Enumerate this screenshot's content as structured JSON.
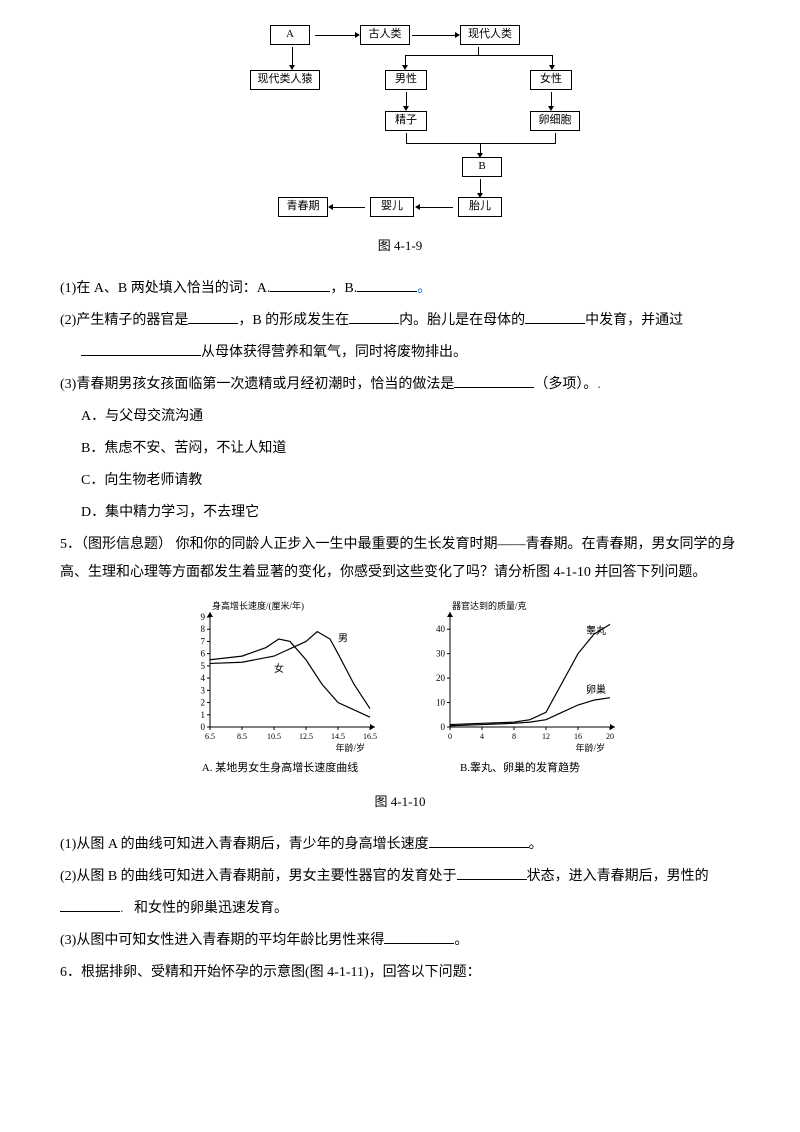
{
  "flowchart": {
    "nodes": {
      "A": "A",
      "ape": "现代类人猿",
      "ancient": "古人类",
      "modern": "现代人类",
      "male": "男性",
      "female": "女性",
      "sperm": "精子",
      "egg": "卵细胞",
      "B": "B",
      "fetus": "胎儿",
      "baby": "婴儿",
      "puberty": "青春期"
    },
    "caption": "图 4-1-9"
  },
  "q1": {
    "text_pre": "(1)在 A、B 两处填入恰当的词：A.",
    "sep": "，B.",
    "end": "。"
  },
  "q2": {
    "p1": "(2)产生精子的器官是",
    "p2": "，B 的形成发生在",
    "p3": "内。胎儿是在母体的",
    "p4": "中发育，并通过",
    "p5": "从母体获得营养和氧气，同时将废物排出。"
  },
  "q3": {
    "stem": "(3)青春期男孩女孩面临第一次遗精或月经初潮时，恰当的做法是",
    "tail": "（多项）。",
    "opts": {
      "A": "A．与父母交流沟通",
      "B": "B．焦虑不安、苦闷，不让人知道",
      "C": "C．向生物老师请教",
      "D": "D．集中精力学习，不去理它"
    }
  },
  "q5": {
    "num": "5．（图形信息题）",
    "body": "  你和你的同龄人正步入一生中最重要的生长发育时期——青春期。在青春期，男女同学的身高、生理和心理等方面都发生着显著的变化，你感受到这些变化了吗？请分析图 4-1-10 并回答下列问题。"
  },
  "chartA": {
    "ylabel": "身高增长速度/(厘米/年)",
    "ylim": [
      0,
      9
    ],
    "yticks": [
      0,
      1,
      2,
      3,
      4,
      5,
      6,
      7,
      8,
      9
    ],
    "xlabel": "年龄/岁",
    "xticks": [
      "6.5",
      "8.5",
      "10.5",
      "12.5",
      "14.5",
      "16.5"
    ],
    "series_male": {
      "label": "男",
      "color": "#000000",
      "width": 1.2,
      "points": [
        [
          6.5,
          5.2
        ],
        [
          8.5,
          5.3
        ],
        [
          10.5,
          5.8
        ],
        [
          12.5,
          7.0
        ],
        [
          13.2,
          7.8
        ],
        [
          14.0,
          7.2
        ],
        [
          14.5,
          6.0
        ],
        [
          15.5,
          3.5
        ],
        [
          16.5,
          1.5
        ]
      ]
    },
    "series_female": {
      "label": "女",
      "color": "#000000",
      "width": 1.2,
      "points": [
        [
          6.5,
          5.5
        ],
        [
          8.5,
          5.8
        ],
        [
          10.0,
          6.5
        ],
        [
          10.8,
          7.2
        ],
        [
          11.5,
          7.0
        ],
        [
          12.5,
          5.5
        ],
        [
          13.5,
          3.5
        ],
        [
          14.5,
          2.0
        ],
        [
          16.5,
          0.8
        ]
      ]
    },
    "caption": "A. 某地男女生身高增长速度曲线"
  },
  "chartB": {
    "ylabel": "器官达到的质量/克",
    "ylim": [
      0,
      45
    ],
    "yticks": [
      0,
      10,
      20,
      30,
      40
    ],
    "xlabel": "年龄/岁",
    "xticks": [
      "0",
      "4",
      "8",
      "12",
      "16",
      "20"
    ],
    "series_testis": {
      "label": "睾丸",
      "color": "#000000",
      "width": 1.2,
      "points": [
        [
          0,
          1
        ],
        [
          4,
          1.5
        ],
        [
          8,
          2
        ],
        [
          10,
          3
        ],
        [
          12,
          6
        ],
        [
          14,
          18
        ],
        [
          16,
          30
        ],
        [
          18,
          38
        ],
        [
          20,
          42
        ]
      ]
    },
    "series_ovary": {
      "label": "卵巢",
      "color": "#000000",
      "width": 1.2,
      "points": [
        [
          0,
          0.5
        ],
        [
          4,
          1
        ],
        [
          8,
          1.5
        ],
        [
          10,
          2
        ],
        [
          12,
          3
        ],
        [
          14,
          6
        ],
        [
          16,
          9
        ],
        [
          18,
          11
        ],
        [
          20,
          12
        ]
      ]
    },
    "caption": "B.睾丸、卵巢的发育趋势"
  },
  "fig2_caption": "图 4-1-10",
  "sub1": {
    "pre": "(1)从图 A 的曲线可知进入青春期后，青少年的身高增长速度",
    "end": "。"
  },
  "sub2": {
    "pre": "(2)从图 B 的曲线可知进入青春期前，男女主要性器官的发育处于",
    "mid": "状态，进入青春期后，男性的",
    "end": "和女性的卵巢迅速发育。"
  },
  "sub3": {
    "pre": "(3)从图中可知女性进入青春期的平均年龄比男性来得",
    "end": "。"
  },
  "q6": {
    "text": "6．根据排卵、受精和开始怀孕的示意图(图 4-1-11)，回答以下问题："
  }
}
